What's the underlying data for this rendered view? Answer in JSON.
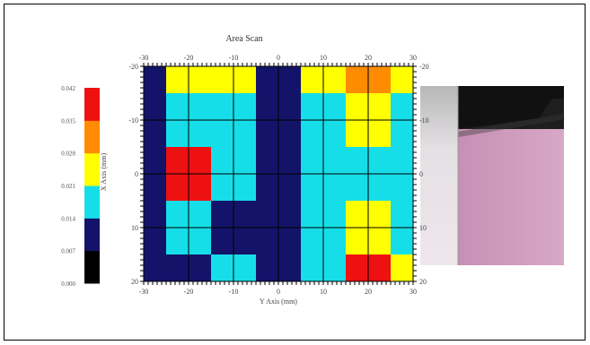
{
  "chart_data": {
    "type": "heatmap",
    "title": "Area Scan",
    "xlabel": "Y Axis (mm)",
    "ylabel": "X Axis (mm)",
    "xlim": [
      -30,
      30
    ],
    "ylim": [
      -20,
      20
    ],
    "x_ticks": [
      "-30",
      "-20",
      "-10",
      "0",
      "10",
      "20",
      "30"
    ],
    "y_ticks": [
      "-20",
      "-10",
      "0",
      "10",
      "20"
    ],
    "grid": true,
    "colorbar": {
      "levels": [
        "0.000",
        "0.007",
        "0.014",
        "0.021",
        "0.028",
        "0.035",
        "0.042"
      ],
      "colors": [
        "#000000",
        "#131369",
        "#16dee8",
        "#ffff00",
        "#ff8c00",
        "#ee1111"
      ]
    },
    "x": [
      -30,
      -20,
      -10,
      0,
      10,
      20,
      30
    ],
    "y": [
      -20,
      -10,
      0,
      10,
      20
    ],
    "values": [
      [
        0.009,
        0.027,
        0.024,
        0.008,
        0.026,
        0.028,
        0.025
      ],
      [
        0.01,
        0.018,
        0.017,
        0.01,
        0.018,
        0.024,
        0.018
      ],
      [
        0.012,
        0.035,
        0.016,
        0.012,
        0.016,
        0.017,
        0.017
      ],
      [
        0.012,
        0.016,
        0.01,
        0.011,
        0.019,
        0.025,
        0.019
      ],
      [
        0.009,
        0.01,
        0.016,
        0.012,
        0.019,
        0.035,
        0.021
      ]
    ]
  }
}
